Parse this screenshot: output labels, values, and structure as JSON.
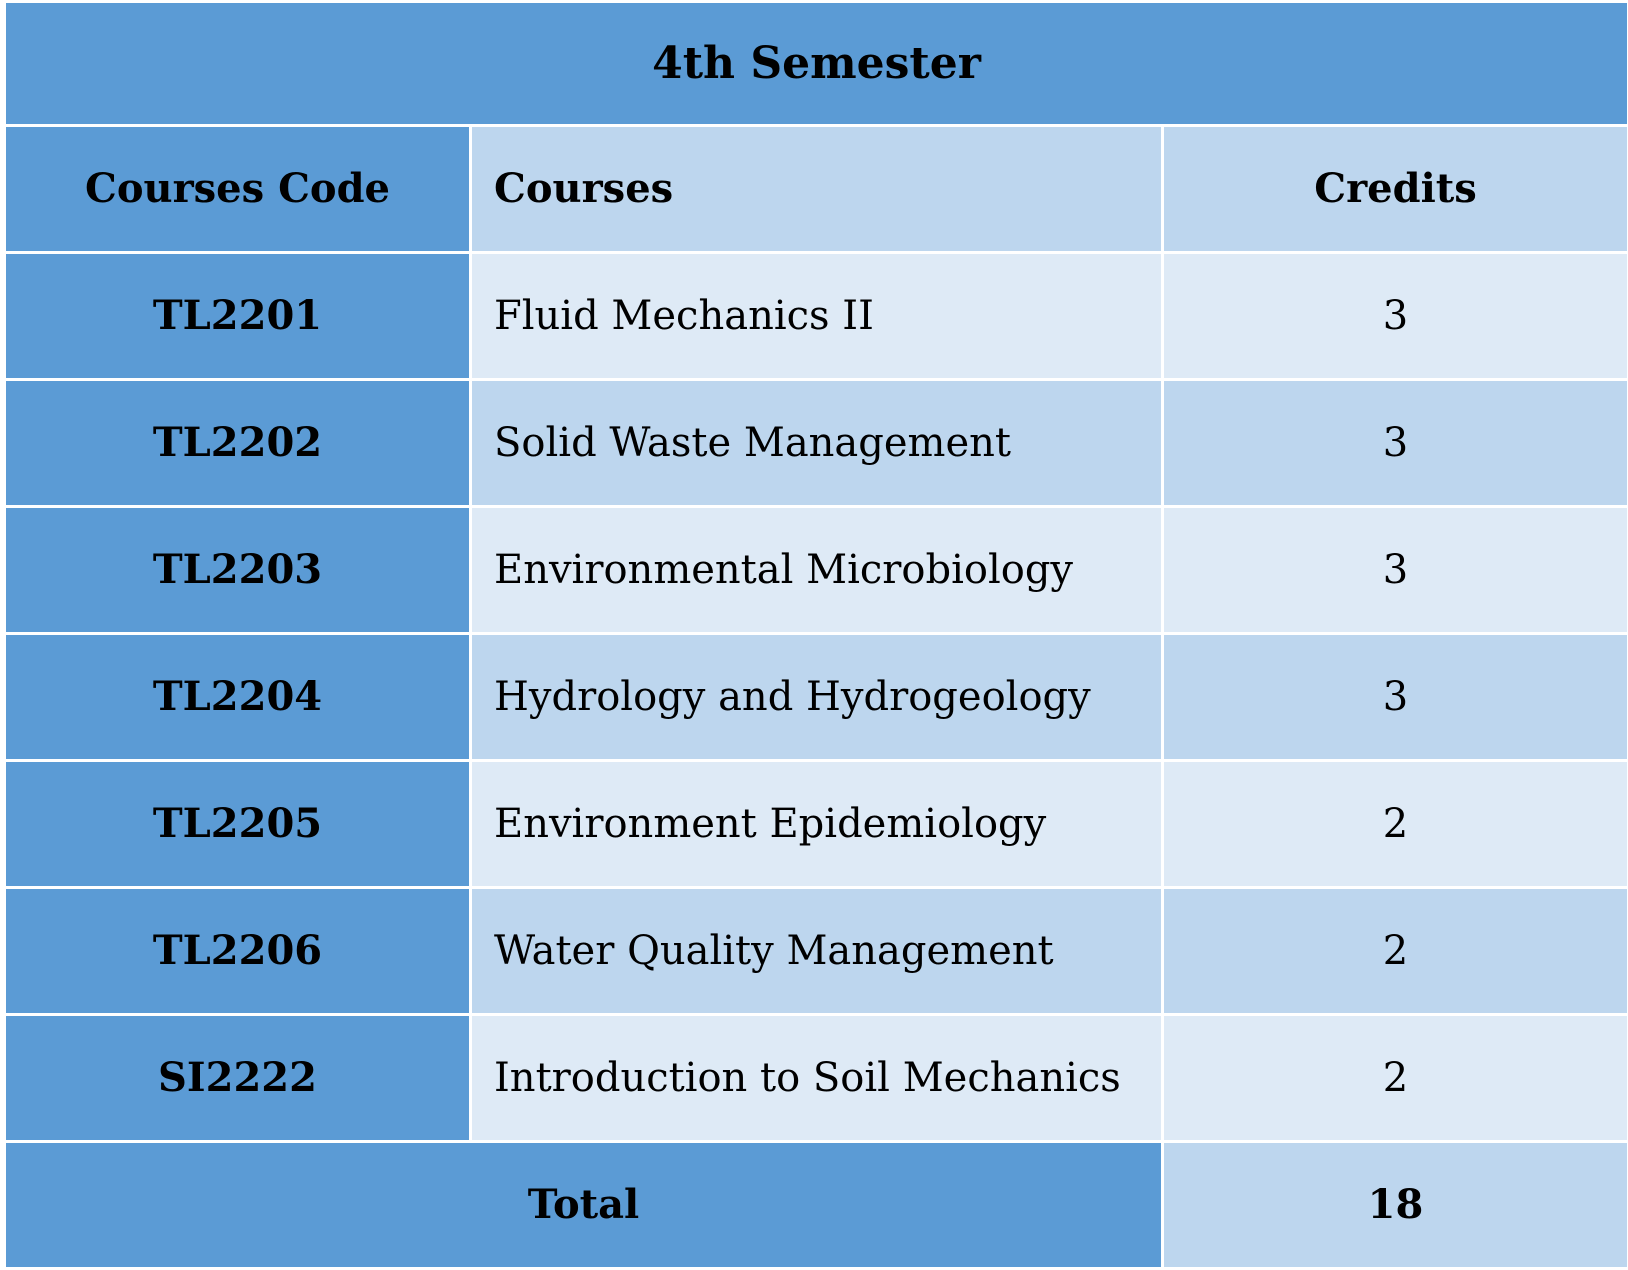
{
  "table": {
    "title": "4th Semester",
    "headers": {
      "code": "Courses Code",
      "course": "Courses",
      "credits": "Credits"
    },
    "rows": [
      {
        "code": "TL2201",
        "course": "Fluid Mechanics II",
        "credits": "3"
      },
      {
        "code": "TL2202",
        "course": "Solid Waste Management",
        "credits": "3"
      },
      {
        "code": "TL2203",
        "course": "Environmental Microbiology",
        "credits": "3"
      },
      {
        "code": "TL2204",
        "course": "Hydrology and Hydrogeology",
        "credits": "3"
      },
      {
        "code": "TL2205",
        "course": "Environment Epidemiology",
        "credits": "2"
      },
      {
        "code": "TL2206",
        "course": "Water Quality Management",
        "credits": "2"
      },
      {
        "code": "SI2222",
        "course": "Introduction to Soil Mechanics",
        "credits": "2"
      }
    ],
    "total": {
      "label": "Total",
      "value": "18"
    }
  },
  "colors": {
    "dark_blue": "#5b9bd5",
    "mid_blue": "#bdd6ee",
    "light_blue": "#deeaf6"
  }
}
